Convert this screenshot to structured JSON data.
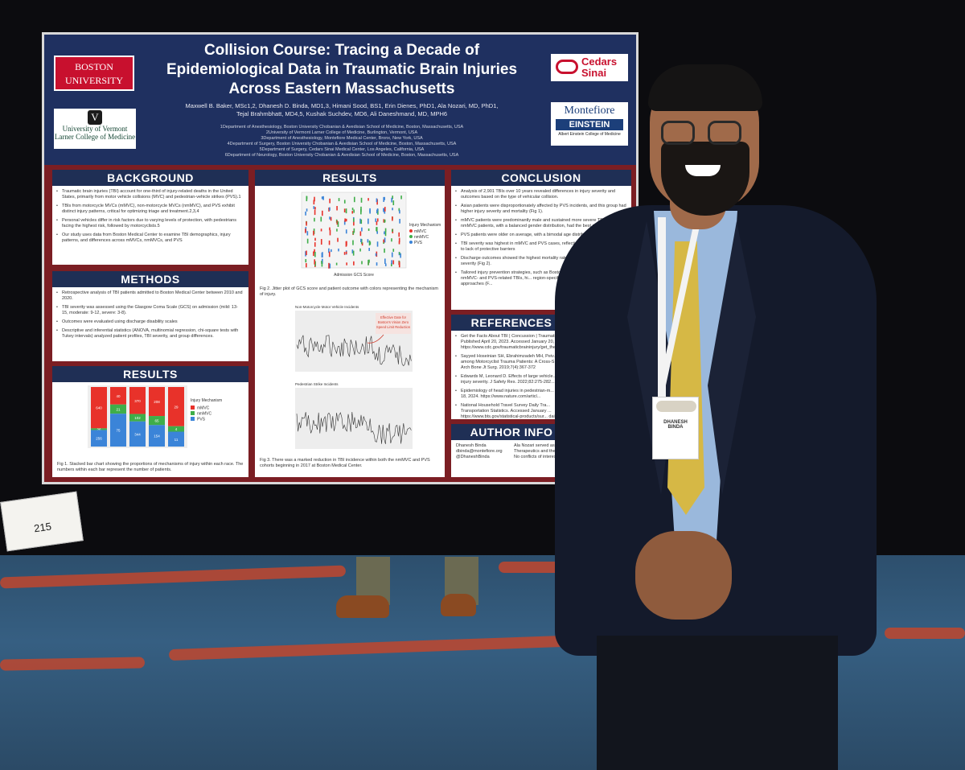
{
  "poster": {
    "title_line1": "Collision Course: Tracing a Decade of",
    "title_line2": "Epidemiological Data in Traumatic Brain Injuries",
    "title_line3": "Across Eastern Massachusetts",
    "authors_line1": "Maxwell B. Baker, MSc1,2, Dhanesh D. Binda, MD1,3, Himani Sood, BS1, Erin Dienes, PhD1, Ala Nozari, MD, PhD1,",
    "authors_line2": "Tejal Brahmbhatt, MD4,5, Kushak Suchdev, MD6, Ali Daneshmand, MD, MPH6",
    "affiliations": [
      "1Department of Anesthesiology, Boston University Chobanian & Avedisian School of Medicine, Boston, Massachusetts, USA",
      "2University of Vermont Larner College of Medicine, Burlington, Vermont, USA",
      "3Department of Anesthesiology, Montefiore Medical Center, Bronx, New York, USA",
      "4Department of Surgery, Boston University Chobanian & Avedisian School of Medicine, Boston, Massachusetts, USA",
      "5Department of Surgery, Cedars Sinai Medical Center, Los Angeles, California, USA",
      "6Department of Neurology, Boston University Chobanian & Avedisian School of Medicine, Boston, Massachusetts, USA"
    ],
    "logos": {
      "bu_line1": "BOSTON",
      "bu_line2": "UNIVERSITY",
      "uvm_mark": "V",
      "uvm_line1": "University of Vermont",
      "uvm_line2": "Larner College of Medicine",
      "cs_line1": "Cedars",
      "cs_line2": "Sinai",
      "mf_line1": "Montefiore",
      "mf_line2": "EINSTEIN",
      "mf_line3": "Albert Einstein College of Medicine"
    },
    "background": {
      "heading": "BACKGROUND",
      "items": [
        "Traumatic brain injuries (TBI) account for one-third of injury-related deaths in the United States, primarily from motor vehicle collisions (MVC) and pedestrian-vehicle strikes (PVS).1",
        "TBIs from motorcycle MVCs (mMVC), non-motorcycle MVCs (nmMVC), and PVS exhibit distinct injury patterns, critical for optimizing triage and treatment.2,3,4",
        "Personal vehicles differ in risk factors due to varying levels of protection, with pedestrians facing the highest risk, followed by motorcyclists.5",
        "Our study uses data from Boston Medical Center to examine TBI demographics, injury patterns, and differences across mMVCs, nmMVCs, and PVS"
      ]
    },
    "methods": {
      "heading": "METHODS",
      "items": [
        "Retrospective analysis of TBI patients admitted to Boston Medical Center between 2010 and 2020.",
        "TBI severity was assessed using the Glasgow Coma Scale (GCS) on admission (mild: 13-15, moderate: 9-12, severe: 3-8).",
        "Outcomes were evaluated using discharge disability scales",
        "Descriptive and inferential statistics (ANOVA, multinomial regression, chi-square tests with Tukey intervals) analyzed patient profiles, TBI severity, and group differences."
      ]
    },
    "results_left": {
      "heading": "RESULTS",
      "legend_title": "Injury Mechanism",
      "caption": "Fig 1. Stacked bar chart showing the proportions of mechanisms of injury within each race. The numbers within each bar represent the number of patients."
    },
    "results_mid": {
      "heading": "RESULTS",
      "fig2_caption": "Fig 2. Jitter plot of GCS score and patient outcome with colors representing the mechanism of injury.",
      "fig2_xlabel": "Admission GCS Score",
      "fig2_legend_title": "Injury Mechanism",
      "plot_a_title": "Non-Motorcycle Motor Vehicle Incidents",
      "annotation": "Effective Date for Boston's Vision Zero Speed Limit Reduction",
      "plot_b_title": "Pedestrian Strike Incidents",
      "fig3_caption": "Fig 3. There was a marked reduction in TBI incidence within both the nmMVC and PVS cohorts beginning in 2017 at Boston Medical Center."
    },
    "conclusion": {
      "heading": "CONCLUSION",
      "items": [
        "Analysis of 2,901 TBIs over 10 years revealed differences in injury severity and outcomes based on the type of vehicular collision.",
        "Asian patients were disproportionately affected by PVS incidents, and this group had higher injury severity and mortality (Fig 1).",
        "mMVC patients were predominantly male and sustained more severe TBIs, while nmMVC patients, with a balanced gender distribution, had the best recovery rates.",
        "PVS patients were older on average, with a bimodal age distribution.",
        "TBI severity was highest in mMVC and PVS cases, reflecting greater... transfer due to lack of protective barriers",
        "Discharge outcomes showed the highest mortality rates in P... to their age and injury severity (Fig 2).",
        "Tailored injury prevention strategies, such as Boston's V... successfully reduced nmMVC- and PVS-related TBIs, hi... region-specific prevention and treatment approaches (F..."
      ]
    },
    "references": {
      "heading": "REFERENCES",
      "items": [
        "Get the Facts About TBI | Concussion | Traumatic ... Published April 20, 2023. Accessed January 20, 2... https://www.cdc.gov/traumaticbraininjury/get_the...",
        "Sayyed Hoseinian SH, Ebrahimzadeh MH, Peiv... among Motorcyclist Trauma Patients: A Cross-S... Arch Bone Jt Surg. 2019;7(4):367-372",
        "Edwards M, Leonard D. Effects of large vehicle... injury severity. J Safety Res. 2022;82:275-282...",
        "Epidemiology of head injuries in pedestrian-m... April 18, 2024. https://www.nature.com/articl...",
        "National Household Travel Survey Daily Tra... Transportation Statistics. Accessed January ... https://www.bts.gov/statistical-products/sur... daily-travel-quick-facts"
      ]
    },
    "author_info": {
      "heading": "AUTHOR INFO",
      "name": "Dhanesh Binda",
      "email": "dbinda@montefiore.org",
      "handle": "@DhaneshBinda",
      "disclosure_1": "Ala Nozari served as ...",
      "disclosure_2": "Therapeutics and the ...",
      "disclosure_3": "No conflicts of interest ..."
    }
  },
  "fig1": {
    "type": "bar",
    "categories": [
      "",
      "",
      "",
      "",
      ""
    ],
    "legend": [
      "mMVC",
      "nmMVC",
      "PVS"
    ],
    "colors": {
      "mMVC": "#e8322a",
      "nmMVC": "#3fae49",
      "PVS": "#3b84d8"
    },
    "series": [
      {
        "name": "mMVC",
        "values": [
          640,
          40,
          370,
          208,
          29
        ]
      },
      {
        "name": "nmMVC",
        "values": [
          26,
          21,
          102,
          65,
          4
        ]
      },
      {
        "name": "PVS",
        "values": [
          256,
          75,
          344,
          154,
          11
        ]
      }
    ]
  },
  "fig2_legend": [
    "mMVC",
    "nmMVC",
    "PVS"
  ],
  "badge": {
    "name": "DHANESH",
    "surname": "BINDA"
  },
  "booth_tag": "215"
}
